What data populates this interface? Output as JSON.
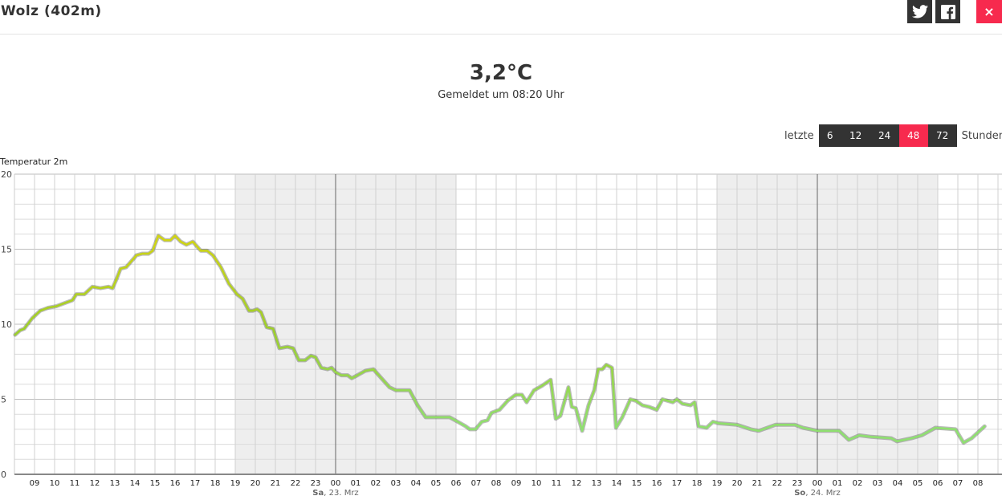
{
  "header": {
    "title": "Wolz (402m)",
    "share_twitter": "twitter-icon",
    "share_facebook": "facebook-icon",
    "close_label": "×"
  },
  "current": {
    "temperature": "3,2°C",
    "reported": "Gemeldet um 08:20 Uhr"
  },
  "range": {
    "prefix": "letzte",
    "suffix": "Stunden",
    "options": [
      "6",
      "12",
      "24",
      "48",
      "72"
    ],
    "selected": "48"
  },
  "colors": {
    "accent": "#f72a4e",
    "button": "#333333",
    "night_shade": "#eeeeee",
    "line_warm": "#d2d412",
    "line_cool": "#8fe070"
  },
  "chart_data": {
    "type": "line",
    "title": "Temperatur 2m",
    "ylim": [
      0,
      20
    ],
    "yticks": [
      0,
      5,
      10,
      15,
      20
    ],
    "ygrid_minor_step": 1,
    "grid": true,
    "xlim": [
      "22.03. 08:00",
      "24.03. 09:12"
    ],
    "xtick_labels": [
      "09",
      "10",
      "11",
      "12",
      "13",
      "14",
      "15",
      "16",
      "17",
      "18",
      "19",
      "20",
      "21",
      "22",
      "23",
      "00",
      "01",
      "02",
      "03",
      "04",
      "05",
      "06",
      "07",
      "08",
      "09",
      "10",
      "11",
      "12",
      "13",
      "14",
      "15",
      "16",
      "17",
      "18",
      "19",
      "20",
      "21",
      "22",
      "23",
      "00",
      "01",
      "02",
      "03",
      "04",
      "05",
      "06",
      "07",
      "08"
    ],
    "day_labels": [
      {
        "at": "23.03. 00:00",
        "bold": "Sa",
        "rest": ", 23. Mrz"
      },
      {
        "at": "24.03. 00:00",
        "bold": "So",
        "rest": ", 24. Mrz"
      }
    ],
    "night_bands": [
      [
        "22.03. 19:00",
        "23.03. 06:00"
      ],
      [
        "23.03. 19:00",
        "24.03. 06:00"
      ]
    ],
    "series": [
      {
        "points": [
          [
            "22.03. 08:02",
            9.3
          ],
          [
            "22.03. 08:17",
            9.6
          ],
          [
            "22.03. 08:29",
            9.7
          ],
          [
            "22.03. 08:53",
            10.4
          ],
          [
            "22.03. 09:17",
            10.9
          ],
          [
            "22.03. 09:41",
            11.1
          ],
          [
            "22.03. 10:05",
            11.2
          ],
          [
            "22.03. 10:29",
            11.4
          ],
          [
            "22.03. 10:53",
            11.6
          ],
          [
            "22.03. 11:05",
            12.0
          ],
          [
            "22.03. 11:29",
            12.0
          ],
          [
            "22.03. 11:53",
            12.5
          ],
          [
            "22.03. 12:17",
            12.4
          ],
          [
            "22.03. 12:41",
            12.5
          ],
          [
            "22.03. 12:53",
            12.4
          ],
          [
            "22.03. 13:05",
            13.0
          ],
          [
            "22.03. 13:17",
            13.7
          ],
          [
            "22.03. 13:34",
            13.8
          ],
          [
            "22.03. 14:05",
            14.6
          ],
          [
            "22.03. 14:22",
            14.7
          ],
          [
            "22.03. 14:41",
            14.7
          ],
          [
            "22.03. 14:53",
            14.9
          ],
          [
            "22.03. 15:10",
            15.9
          ],
          [
            "22.03. 15:29",
            15.6
          ],
          [
            "22.03. 15:46",
            15.6
          ],
          [
            "22.03. 16:00",
            15.9
          ],
          [
            "22.03. 16:17",
            15.5
          ],
          [
            "22.03. 16:34",
            15.3
          ],
          [
            "22.03. 16:53",
            15.5
          ],
          [
            "22.03. 17:17",
            14.9
          ],
          [
            "22.03. 17:36",
            14.9
          ],
          [
            "22.03. 17:53",
            14.6
          ],
          [
            "22.03. 18:17",
            13.8
          ],
          [
            "22.03. 18:41",
            12.7
          ],
          [
            "22.03. 19:05",
            12.0
          ],
          [
            "22.03. 19:22",
            11.7
          ],
          [
            "22.03. 19:41",
            10.9
          ],
          [
            "22.03. 19:53",
            10.9
          ],
          [
            "22.03. 20:05",
            11.0
          ],
          [
            "22.03. 20:17",
            10.8
          ],
          [
            "22.03. 20:34",
            9.8
          ],
          [
            "22.03. 20:53",
            9.7
          ],
          [
            "22.03. 21:12",
            8.4
          ],
          [
            "22.03. 21:36",
            8.5
          ],
          [
            "22.03. 21:53",
            8.4
          ],
          [
            "22.03. 22:10",
            7.6
          ],
          [
            "22.03. 22:29",
            7.6
          ],
          [
            "22.03. 22:46",
            7.9
          ],
          [
            "22.03. 23:00",
            7.8
          ],
          [
            "22.03. 23:17",
            7.1
          ],
          [
            "22.03. 23:36",
            7.0
          ],
          [
            "22.03. 23:48",
            7.1
          ],
          [
            "23.03. 00:00",
            6.8
          ],
          [
            "23.03. 00:17",
            6.6
          ],
          [
            "23.03. 00:36",
            6.6
          ],
          [
            "23.03. 00:48",
            6.4
          ],
          [
            "23.03. 01:05",
            6.6
          ],
          [
            "23.03. 01:29",
            6.9
          ],
          [
            "23.03. 01:53",
            7.0
          ],
          [
            "23.03. 02:17",
            6.4
          ],
          [
            "23.03. 02:41",
            5.8
          ],
          [
            "23.03. 03:00",
            5.6
          ],
          [
            "23.03. 03:41",
            5.6
          ],
          [
            "23.03. 04:05",
            4.6
          ],
          [
            "23.03. 04:29",
            3.8
          ],
          [
            "23.03. 05:41",
            3.8
          ],
          [
            "23.03. 06:05",
            3.5
          ],
          [
            "23.03. 06:29",
            3.2
          ],
          [
            "23.03. 06:41",
            3.0
          ],
          [
            "23.03. 06:58",
            3.0
          ],
          [
            "23.03. 07:17",
            3.5
          ],
          [
            "23.03. 07:34",
            3.6
          ],
          [
            "23.03. 07:46",
            4.1
          ],
          [
            "23.03. 08:10",
            4.3
          ],
          [
            "23.03. 08:34",
            4.9
          ],
          [
            "23.03. 08:58",
            5.3
          ],
          [
            "23.03. 09:17",
            5.3
          ],
          [
            "23.03. 09:31",
            4.8
          ],
          [
            "23.03. 09:53",
            5.6
          ],
          [
            "23.03. 10:17",
            5.9
          ],
          [
            "23.03. 10:43",
            6.3
          ],
          [
            "23.03. 10:58",
            3.7
          ],
          [
            "23.03. 11:12",
            3.9
          ],
          [
            "23.03. 11:36",
            5.8
          ],
          [
            "23.03. 11:46",
            4.5
          ],
          [
            "23.03. 11:58",
            4.4
          ],
          [
            "23.03. 12:17",
            2.9
          ],
          [
            "23.03. 12:36",
            4.6
          ],
          [
            "23.03. 12:53",
            5.6
          ],
          [
            "23.03. 13:05",
            7.0
          ],
          [
            "23.03. 13:17",
            7.0
          ],
          [
            "23.03. 13:29",
            7.3
          ],
          [
            "23.03. 13:46",
            7.1
          ],
          [
            "23.03. 13:58",
            3.1
          ],
          [
            "23.03. 14:17",
            3.8
          ],
          [
            "23.03. 14:41",
            5.0
          ],
          [
            "23.03. 14:58",
            4.9
          ],
          [
            "23.03. 15:17",
            4.6
          ],
          [
            "23.03. 15:36",
            4.5
          ],
          [
            "23.03. 16:00",
            4.3
          ],
          [
            "23.03. 16:17",
            5.0
          ],
          [
            "23.03. 16:48",
            4.8
          ],
          [
            "23.03. 17:00",
            5.0
          ],
          [
            "23.03. 17:17",
            4.7
          ],
          [
            "23.03. 17:41",
            4.6
          ],
          [
            "23.03. 17:53",
            4.8
          ],
          [
            "23.03. 18:05",
            3.2
          ],
          [
            "23.03. 18:29",
            3.1
          ],
          [
            "23.03. 18:48",
            3.5
          ],
          [
            "23.03. 19:05",
            3.4
          ],
          [
            "23.03. 20:00",
            3.3
          ],
          [
            "23.03. 20:41",
            3.0
          ],
          [
            "23.03. 21:05",
            2.9
          ],
          [
            "23.03. 21:55",
            3.3
          ],
          [
            "23.03. 22:53",
            3.3
          ],
          [
            "23.03. 23:17",
            3.1
          ],
          [
            "24.03. 00:00",
            2.9
          ],
          [
            "24.03. 01:05",
            2.9
          ],
          [
            "24.03. 01:34",
            2.3
          ],
          [
            "24.03. 02:05",
            2.6
          ],
          [
            "24.03. 02:41",
            2.5
          ],
          [
            "24.03. 03:41",
            2.4
          ],
          [
            "24.03. 03:58",
            2.2
          ],
          [
            "24.03. 04:41",
            2.4
          ],
          [
            "24.03. 05:12",
            2.6
          ],
          [
            "24.03. 05:53",
            3.1
          ],
          [
            "24.03. 06:53",
            3.0
          ],
          [
            "24.03. 07:17",
            2.1
          ],
          [
            "24.03. 07:41",
            2.4
          ],
          [
            "24.03. 08:20",
            3.2
          ]
        ]
      }
    ]
  }
}
